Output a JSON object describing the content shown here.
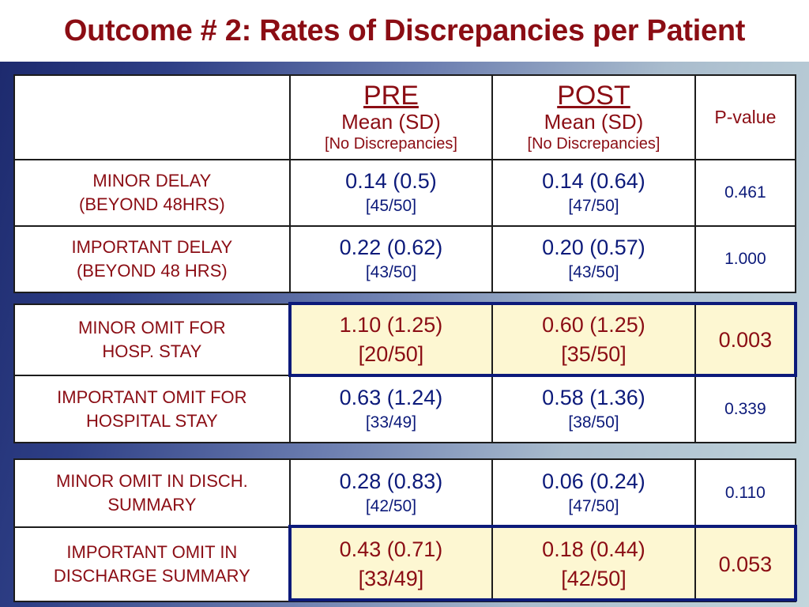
{
  "title": "Outcome # 2: Rates of Discrepancies per Patient",
  "header": {
    "pre_label": "PRE",
    "post_label": "POST",
    "mean_sd": "Mean (SD)",
    "no_disc": "[No Discrepancies]",
    "pvalue_label": "P-value"
  },
  "rows": [
    {
      "label_line1": "MINOR DELAY",
      "label_line2": "(BEYOND 48HRS)",
      "pre_mean": "0.14 (0.5)",
      "pre_frac": "[45/50]",
      "post_mean": "0.14 (0.64)",
      "post_frac": "[47/50]",
      "p": "0.461"
    },
    {
      "label_line1": "IMPORTANT DELAY",
      "label_line2": "(BEYOND 48 HRS)",
      "pre_mean": "0.22 (0.62)",
      "pre_frac": "[43/50]",
      "post_mean": "0.20 (0.57)",
      "post_frac": "[43/50]",
      "p": "1.000"
    },
    {
      "label_line1": "MINOR OMIT FOR",
      "label_line2": "HOSP. STAY",
      "pre_mean": "1.10 (1.25)",
      "pre_frac": "[20/50]",
      "post_mean": "0.60 (1.25)",
      "post_frac": "[35/50]",
      "p": "0.003"
    },
    {
      "label_line1": "IMPORTANT OMIT FOR",
      "label_line2": "HOSPITAL STAY",
      "pre_mean": "0.63 (1.24)",
      "pre_frac": "[33/49]",
      "post_mean": "0.58 (1.36)",
      "post_frac": "[38/50]",
      "p": "0.339"
    },
    {
      "label_line1": "MINOR OMIT IN DISCH.",
      "label_line2": "SUMMARY",
      "pre_mean": "0.28 (0.83)",
      "pre_frac": "[42/50]",
      "post_mean": "0.06 (0.24)",
      "post_frac": "[47/50]",
      "p": "0.110"
    },
    {
      "label_line1": "IMPORTANT OMIT IN",
      "label_line2": "DISCHARGE SUMMARY",
      "pre_mean": "0.43 (0.71)",
      "pre_frac": "[33/49]",
      "post_mean": "0.18 (0.44)",
      "post_frac": "[42/50]",
      "p": "0.053"
    }
  ],
  "colors": {
    "title": "#8b0d14",
    "values": "#0c1a7a",
    "highlight_fill": "#fdf7d2",
    "highlight_border": "#0c1a7a"
  }
}
